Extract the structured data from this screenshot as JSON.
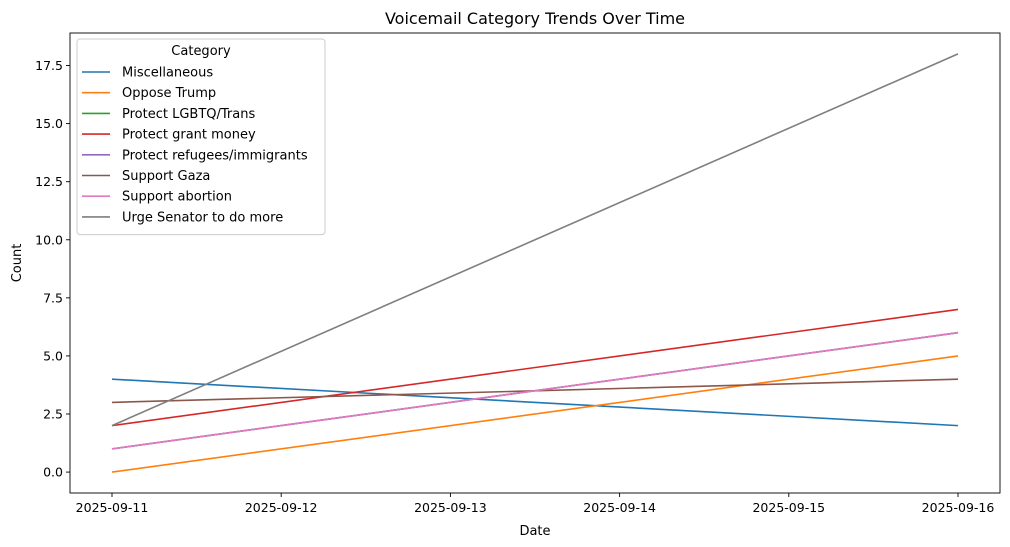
{
  "chart_data": {
    "type": "line",
    "title": "Voicemail Category Trends Over Time",
    "xlabel": "Date",
    "ylabel": "Count",
    "x": [
      "2025-09-11",
      "2025-09-16"
    ],
    "x_ticks": [
      "2025-09-11",
      "2025-09-12",
      "2025-09-13",
      "2025-09-14",
      "2025-09-15",
      "2025-09-16"
    ],
    "ylim": [
      -0.9,
      18.9
    ],
    "y_ticks": [
      "0.0",
      "2.5",
      "5.0",
      "7.5",
      "10.0",
      "12.5",
      "15.0",
      "17.5"
    ],
    "grid": false,
    "legend": {
      "title": "Category",
      "placement": "top-left"
    },
    "series": [
      {
        "name": "Miscellaneous",
        "color": "#1f77b4",
        "values": [
          4,
          2
        ]
      },
      {
        "name": "Oppose Trump",
        "color": "#ff7f0e",
        "values": [
          0,
          5
        ]
      },
      {
        "name": "Protect LGBTQ/Trans",
        "color": "#2ca02c",
        "values": [
          1,
          6
        ]
      },
      {
        "name": "Protect grant money",
        "color": "#d62728",
        "values": [
          2,
          7
        ]
      },
      {
        "name": "Protect refugees/immigrants",
        "color": "#9467bd",
        "values": [
          1,
          6
        ]
      },
      {
        "name": "Support Gaza",
        "color": "#8c564b",
        "values": [
          3,
          4
        ]
      },
      {
        "name": "Support abortion",
        "color": "#e377c2",
        "values": [
          1,
          6
        ]
      },
      {
        "name": "Urge Senator to do more",
        "color": "#7f7f7f",
        "values": [
          2,
          18
        ]
      }
    ]
  }
}
